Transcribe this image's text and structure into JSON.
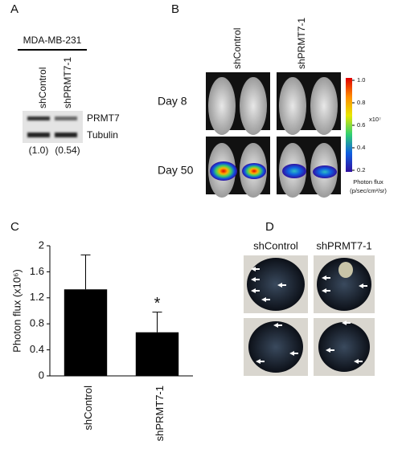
{
  "panel_a": {
    "letter": "A",
    "cell_line": "MDA-MB-231",
    "lanes": [
      "shControl",
      "shPRMT7-1"
    ],
    "bands": [
      "PRMT7",
      "Tubulin"
    ],
    "quantification": [
      "(1.0)",
      "(0.54)"
    ]
  },
  "panel_b": {
    "letter": "B",
    "columns": [
      "shControl",
      "shPRMT7-1"
    ],
    "rows": [
      "Day 8",
      "Day 50"
    ],
    "colorbar": {
      "ticks": [
        {
          "value": 1,
          "label": "1.0"
        },
        0.8,
        0.6,
        0.4,
        0.2
      ],
      "unit_multiplier": "x10⁷",
      "label": "Photon flux",
      "unit": "(p/sec/cm²/sr)"
    }
  },
  "panel_c": {
    "letter": "C",
    "type": "bar",
    "ylabel": "Photon flux (x10⁶)",
    "categories": [
      "shControl",
      "shPRMT7-1"
    ],
    "values": [
      1.33,
      0.67
    ],
    "errors": [
      0.53,
      0.31
    ],
    "color": "#000000",
    "ylim": [
      0,
      2
    ],
    "yticks": [
      0,
      0.4,
      0.8,
      1.2,
      1.6,
      2
    ],
    "annotation": "*"
  },
  "panel_d": {
    "letter": "D",
    "columns": [
      "shControl",
      "shPRMT7-1"
    ]
  }
}
